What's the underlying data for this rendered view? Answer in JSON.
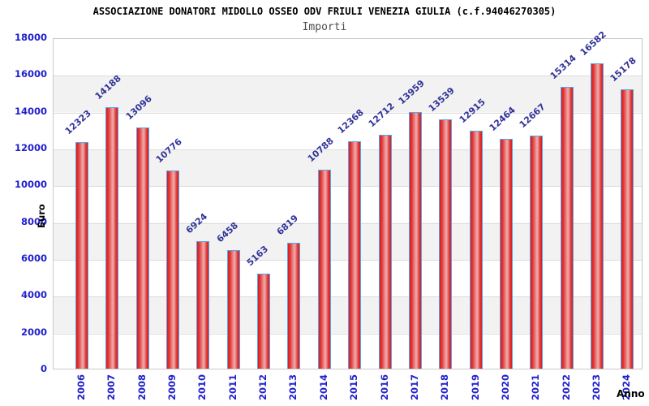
{
  "header": {
    "title": "ASSOCIAZIONE DONATORI MIDOLLO OSSEO ODV FRIULI VENEZIA GIULIA (c.f.94046270305)",
    "subtitle": "Importi"
  },
  "chart_data": {
    "type": "bar",
    "title": "ASSOCIAZIONE DONATORI MIDOLLO OSSEO ODV FRIULI VENEZIA GIULIA (c.f.94046270305)",
    "subtitle": "Importi",
    "xlabel": "Anno",
    "ylabel": "Euro",
    "categories": [
      "2006",
      "2007",
      "2008",
      "2009",
      "2010",
      "2011",
      "2012",
      "2013",
      "2014",
      "2015",
      "2016",
      "2017",
      "2018",
      "2019",
      "2020",
      "2021",
      "2022",
      "2023",
      "2024"
    ],
    "values": [
      12323,
      14188,
      13096,
      10776,
      6924,
      6458,
      5163,
      6819,
      10788,
      12368,
      12712,
      13959,
      13539,
      12915,
      12464,
      12667,
      15314,
      16582,
      15178
    ],
    "ylim": [
      0,
      18000
    ],
    "ytick_step": 2000,
    "yticks": [
      0,
      2000,
      4000,
      6000,
      8000,
      10000,
      12000,
      14000,
      16000,
      18000
    ],
    "grid": true,
    "legend": false,
    "colors": {
      "bar_edge": "#e01c1c",
      "bar_center_highlight": "#efa0a0",
      "bar_border": "#55a6e8",
      "axis_tick_text": "#2020cc",
      "value_label_text": "#333399",
      "band_alt": "#f2f2f2",
      "gridline": "#dcdcdc",
      "title_text": "#000000",
      "subtitle_text": "#4d4d4d"
    }
  }
}
